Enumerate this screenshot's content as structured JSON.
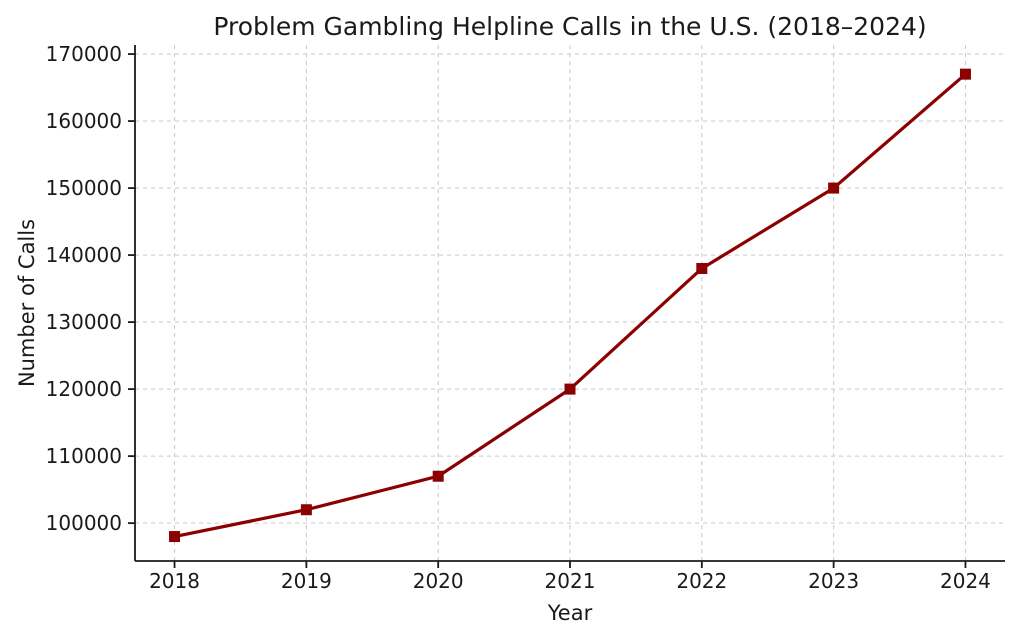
{
  "chart_data": {
    "type": "line",
    "title": "Problem Gambling Helpline Calls in the U.S. (2018–2024)",
    "xlabel": "Year",
    "ylabel": "Number of Calls",
    "x": [
      2018,
      2019,
      2020,
      2021,
      2022,
      2023,
      2024
    ],
    "values": [
      98000,
      102000,
      107000,
      120000,
      138000,
      150000,
      167000
    ],
    "x_tick_labels": [
      "2018",
      "2019",
      "2020",
      "2021",
      "2022",
      "2023",
      "2024"
    ],
    "y_ticks": [
      100000,
      110000,
      120000,
      130000,
      140000,
      150000,
      160000,
      170000
    ],
    "xlim": [
      2017.7,
      2024.3
    ],
    "ylim": [
      94350,
      171350
    ],
    "grid": true,
    "grid_style": "dashed",
    "legend": "none",
    "line_color": "#8b0000",
    "marker": "square",
    "marker_color": "#8b0000",
    "grid_color": "#c9c9c9",
    "axis_color": "#1a1a1a",
    "background": "#ffffff"
  }
}
